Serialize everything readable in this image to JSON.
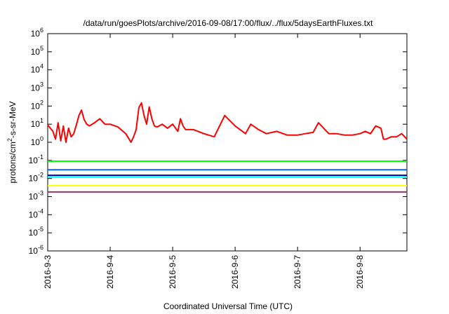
{
  "chart_data": {
    "type": "line",
    "title": "/data/run/goesPlots/archive/2016-09-08/17:00/flux/../flux/5daysEarthFluxes.txt",
    "xlabel": "Coordinated Universal Time (UTC)",
    "ylabel_parts": [
      "protons/cm",
      "2",
      "-s-sr-MeV"
    ],
    "y_scale": "log",
    "ylim": [
      1e-06,
      1000000.0
    ],
    "y_ticks": [
      {
        "base": "10",
        "exp": "-6",
        "value": 1e-06
      },
      {
        "base": "10",
        "exp": "-5",
        "value": 1e-05
      },
      {
        "base": "10",
        "exp": "-4",
        "value": 0.0001
      },
      {
        "base": "10",
        "exp": "-3",
        "value": 0.001
      },
      {
        "base": "10",
        "exp": "-2",
        "value": 0.01
      },
      {
        "base": "10",
        "exp": "-1",
        "value": 0.1
      },
      {
        "base": "10",
        "exp": "0",
        "value": 1
      },
      {
        "base": "10",
        "exp": "1",
        "value": 10
      },
      {
        "base": "10",
        "exp": "2",
        "value": 100
      },
      {
        "base": "10",
        "exp": "3",
        "value": 1000
      },
      {
        "base": "10",
        "exp": "4",
        "value": 10000
      },
      {
        "base": "10",
        "exp": "5",
        "value": 100000
      },
      {
        "base": "10",
        "exp": "6",
        "value": 1000000
      }
    ],
    "x_range": [
      "2016-09-03T00:00",
      "2016-09-08T18:00"
    ],
    "x_ticks": [
      "2016-9-3",
      "2016-9-4",
      "2016-9-5",
      "2016-9-6",
      "2016-9-7",
      "2016-9-8"
    ],
    "grid": false,
    "series": [
      {
        "color": "#ff0000",
        "x": [
          "2016-09-03T00:00",
          "2016-09-03T02:00",
          "2016-09-03T03:00",
          "2016-09-03T04:00",
          "2016-09-03T05:00",
          "2016-09-03T06:00",
          "2016-09-03T07:00",
          "2016-09-03T08:00",
          "2016-09-03T09:00",
          "2016-09-03T10:00",
          "2016-09-03T11:00",
          "2016-09-03T12:00",
          "2016-09-03T13:00",
          "2016-09-03T14:00",
          "2016-09-03T15:00",
          "2016-09-03T16:00",
          "2016-09-03T18:00",
          "2016-09-03T20:00",
          "2016-09-03T22:00",
          "2016-09-04T00:00",
          "2016-09-04T03:00",
          "2016-09-04T06:00",
          "2016-09-04T08:00",
          "2016-09-04T09:00",
          "2016-09-04T10:00",
          "2016-09-04T11:00",
          "2016-09-04T12:00",
          "2016-09-04T13:00",
          "2016-09-04T14:00",
          "2016-09-04T15:00",
          "2016-09-04T16:00",
          "2016-09-04T17:00",
          "2016-09-04T18:00",
          "2016-09-04T20:00",
          "2016-09-04T22:00",
          "2016-09-05T00:00",
          "2016-09-05T02:00",
          "2016-09-05T03:00",
          "2016-09-05T04:00",
          "2016-09-05T05:00",
          "2016-09-05T08:00",
          "2016-09-05T12:00",
          "2016-09-05T16:00",
          "2016-09-05T20:00",
          "2016-09-06T00:00",
          "2016-09-06T04:00",
          "2016-09-06T06:00",
          "2016-09-06T09:00",
          "2016-09-06T12:00",
          "2016-09-06T16:00",
          "2016-09-06T20:00",
          "2016-09-07T00:00",
          "2016-09-07T03:00",
          "2016-09-07T06:00",
          "2016-09-07T08:00",
          "2016-09-07T12:00",
          "2016-09-07T15:00",
          "2016-09-07T18:00",
          "2016-09-07T21:00",
          "2016-09-08T00:00",
          "2016-09-08T02:00",
          "2016-09-08T04:00",
          "2016-09-08T06:00",
          "2016-09-08T08:00",
          "2016-09-08T09:00",
          "2016-09-08T10:00",
          "2016-09-08T12:00",
          "2016-09-08T14:00",
          "2016-09-08T16:00",
          "2016-09-08T18:00"
        ],
        "values": [
          9,
          4,
          1.5,
          12,
          1.2,
          8,
          1.0,
          6,
          2,
          3,
          9,
          30,
          60,
          18,
          10,
          8,
          12,
          20,
          10,
          10,
          7,
          3,
          1,
          2,
          5,
          80,
          150,
          30,
          10,
          90,
          20,
          8,
          7,
          10,
          6,
          10,
          4,
          20,
          8,
          5,
          5,
          3,
          2,
          30,
          8,
          3,
          10,
          5,
          3,
          4,
          2.5,
          2.5,
          3,
          3.5,
          12,
          3,
          3,
          2.5,
          2.5,
          3,
          4,
          3,
          8,
          6,
          1.5,
          1.5,
          2,
          2,
          3,
          1.5
        ]
      },
      {
        "color": "#00ff00",
        "x": [
          "2016-09-03T00:00",
          "2016-09-08T18:00"
        ],
        "values": [
          0.09,
          0.09
        ]
      },
      {
        "color": "#00ffff",
        "x": [
          "2016-09-03T00:00",
          "2016-09-08T18:00"
        ],
        "values": [
          0.012,
          0.012
        ]
      },
      {
        "color": "#0066ff",
        "x": [
          "2016-09-03T00:00",
          "2016-09-08T18:00"
        ],
        "values": [
          0.03,
          0.03
        ]
      },
      {
        "color": "#0000aa",
        "x": [
          "2016-09-03T00:00",
          "2016-09-08T18:00"
        ],
        "values": [
          0.015,
          0.015
        ]
      },
      {
        "color": "#ffff00",
        "x": [
          "2016-09-03T00:00",
          "2016-09-08T18:00"
        ],
        "values": [
          0.004,
          0.004
        ]
      },
      {
        "color": "#993366",
        "x": [
          "2016-09-03T00:00",
          "2016-09-08T18:00"
        ],
        "values": [
          0.0018,
          0.0018
        ]
      }
    ]
  }
}
